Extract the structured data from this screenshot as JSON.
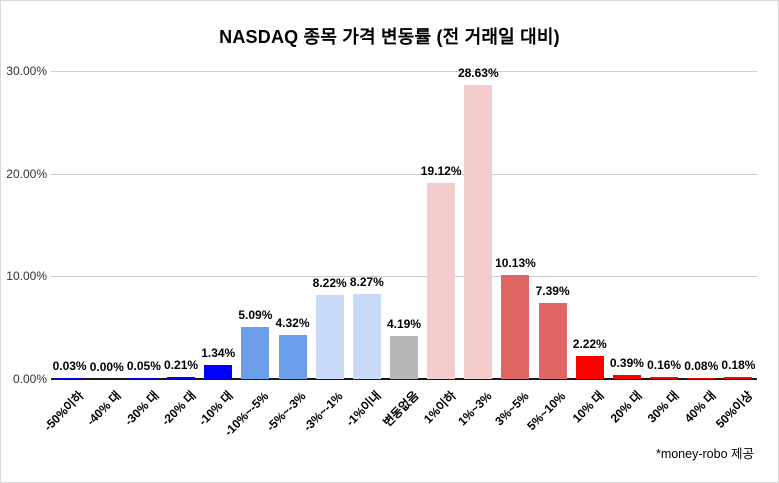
{
  "footer": "*money-robo 제공",
  "chart_data": {
    "type": "bar",
    "title": "NASDAQ 종목 가격 변동률 (전 거래일 대비)",
    "xlabel": "",
    "ylabel": "",
    "categories": [
      "-50%이하",
      "-40% 대",
      "-30% 대",
      "-20% 대",
      "-10% 대",
      "-10%~-5%",
      "-5%~-3%",
      "-3%~-1%",
      "-1%이내",
      "변동없음",
      "1%이하",
      "1%~3%",
      "3%~5%",
      "5%~10%",
      "10% 대",
      "20% 대",
      "30% 대",
      "40% 대",
      "50%이상"
    ],
    "values": [
      0.03,
      0.0,
      0.05,
      0.21,
      1.34,
      5.09,
      4.32,
      8.22,
      8.27,
      4.19,
      19.12,
      28.63,
      10.13,
      7.39,
      2.22,
      0.39,
      0.16,
      0.08,
      0.18
    ],
    "labels": [
      "0.03%",
      "0.00%",
      "0.05%",
      "0.21%",
      "1.34%",
      "5.09%",
      "4.32%",
      "8.22%",
      "8.27%",
      "4.19%",
      "19.12%",
      "28.63%",
      "10.13%",
      "7.39%",
      "2.22%",
      "0.39%",
      "0.16%",
      "0.08%",
      "0.18%"
    ],
    "bar_colors": [
      "#0000FF",
      "#0000FF",
      "#0000FF",
      "#0000FF",
      "#0000FF",
      "#6D9EEB",
      "#6D9EEB",
      "#C9DAF8",
      "#C9DAF8",
      "#B7B7B7",
      "#F4CCCC",
      "#F4CCCC",
      "#E06666",
      "#E06666",
      "#FF0000",
      "#FF0000",
      "#FF0000",
      "#FF0000",
      "#FF0000"
    ],
    "y_ticks": [
      "0.00%",
      "10.00%",
      "20.00%",
      "30.00%"
    ],
    "y_tick_values": [
      0,
      10,
      20,
      30
    ],
    "ylim": [
      0,
      30
    ],
    "grid": true,
    "legend": false,
    "value_label_position": "above-bars",
    "x_label_rotation_deg": -45,
    "axis_line_color": "#1a1a1a",
    "gridline_color": "#cccccc"
  }
}
